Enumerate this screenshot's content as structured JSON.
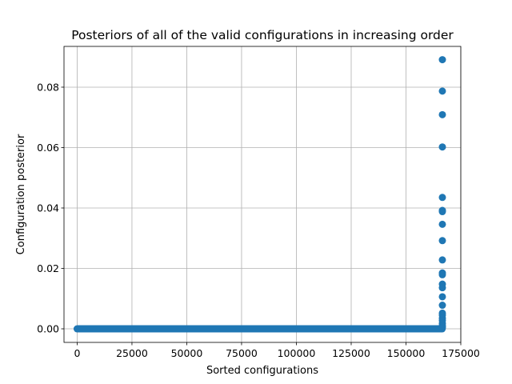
{
  "chart_data": {
    "type": "scatter",
    "title": "Posteriors of all of the valid configurations in increasing order",
    "xlabel": "Sorted configurations",
    "ylabel": "Configuration posterior",
    "xlim": [
      -6000,
      175000
    ],
    "ylim": [
      -0.0045,
      0.0935
    ],
    "xticks": [
      0,
      25000,
      50000,
      75000,
      100000,
      125000,
      150000,
      175000
    ],
    "xtick_labels": [
      "0",
      "25000",
      "50000",
      "75000",
      "100000",
      "125000",
      "150000",
      "175000"
    ],
    "yticks": [
      0.0,
      0.02,
      0.04,
      0.06,
      0.08
    ],
    "ytick_labels": [
      "0.00",
      "0.02",
      "0.04",
      "0.06",
      "0.08"
    ],
    "grid": true,
    "marker_color": "#1f77b4",
    "series": [
      {
        "near_zero_range": [
          0,
          166500
        ],
        "x": [
          166600,
          166600,
          166600,
          166600,
          166600,
          166600,
          166600,
          166600,
          166600,
          166600,
          166600,
          166600,
          166600,
          166600,
          166600,
          166600,
          166600,
          166600,
          166600,
          166600,
          166600,
          166600,
          166600
        ],
        "y": [
          0.0891,
          0.0787,
          0.0709,
          0.0602,
          0.0435,
          0.0392,
          0.0388,
          0.0346,
          0.0292,
          0.0228,
          0.0185,
          0.0179,
          0.0148,
          0.0136,
          0.0106,
          0.0078,
          0.0052,
          0.0045,
          0.0035,
          0.0028,
          0.0018,
          0.001,
          0.0005
        ]
      }
    ]
  }
}
